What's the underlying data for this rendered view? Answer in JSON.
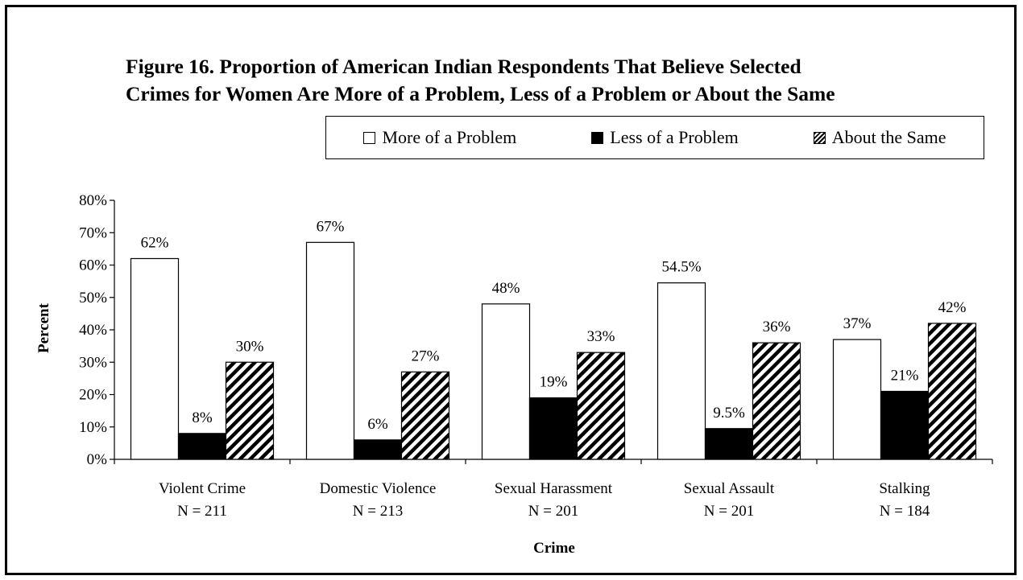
{
  "chart_data": {
    "type": "bar",
    "title": "Figure 16.  Proportion of American Indian Respondents That Believe Selected",
    "subtitle": "Crimes for Women Are More of a Problem, Less of a Problem or About the Same",
    "xlabel": "Crime",
    "ylabel": "Percent",
    "ylim": [
      0,
      80
    ],
    "yticks": [
      "0%",
      "10%",
      "20%",
      "30%",
      "40%",
      "50%",
      "60%",
      "70%",
      "80%"
    ],
    "categories": [
      "Violent Crime",
      "Domestic Violence",
      "Sexual Harassment",
      "Sexual Assault",
      "Stalking"
    ],
    "category_n": [
      "N = 211",
      "N = 213",
      "N = 201",
      "N = 201",
      "N = 184"
    ],
    "legend_position": "top-right",
    "grid": false,
    "series": [
      {
        "name": "More of a Problem",
        "values": [
          62,
          67,
          48,
          54.5,
          37
        ],
        "labels": [
          "62%",
          "67%",
          "48%",
          "54.5%",
          "37%"
        ],
        "fill": "#ffffff"
      },
      {
        "name": "Less of a Problem",
        "values": [
          8,
          6,
          19,
          9.5,
          21
        ],
        "labels": [
          "8%",
          "6%",
          "19%",
          "9.5%",
          "21%"
        ],
        "fill": "#000000"
      },
      {
        "name": "About the Same",
        "values": [
          30,
          27,
          33,
          36,
          42
        ],
        "labels": [
          "30%",
          "27%",
          "33%",
          "36%",
          "42%"
        ],
        "fill": "hatch"
      }
    ]
  }
}
